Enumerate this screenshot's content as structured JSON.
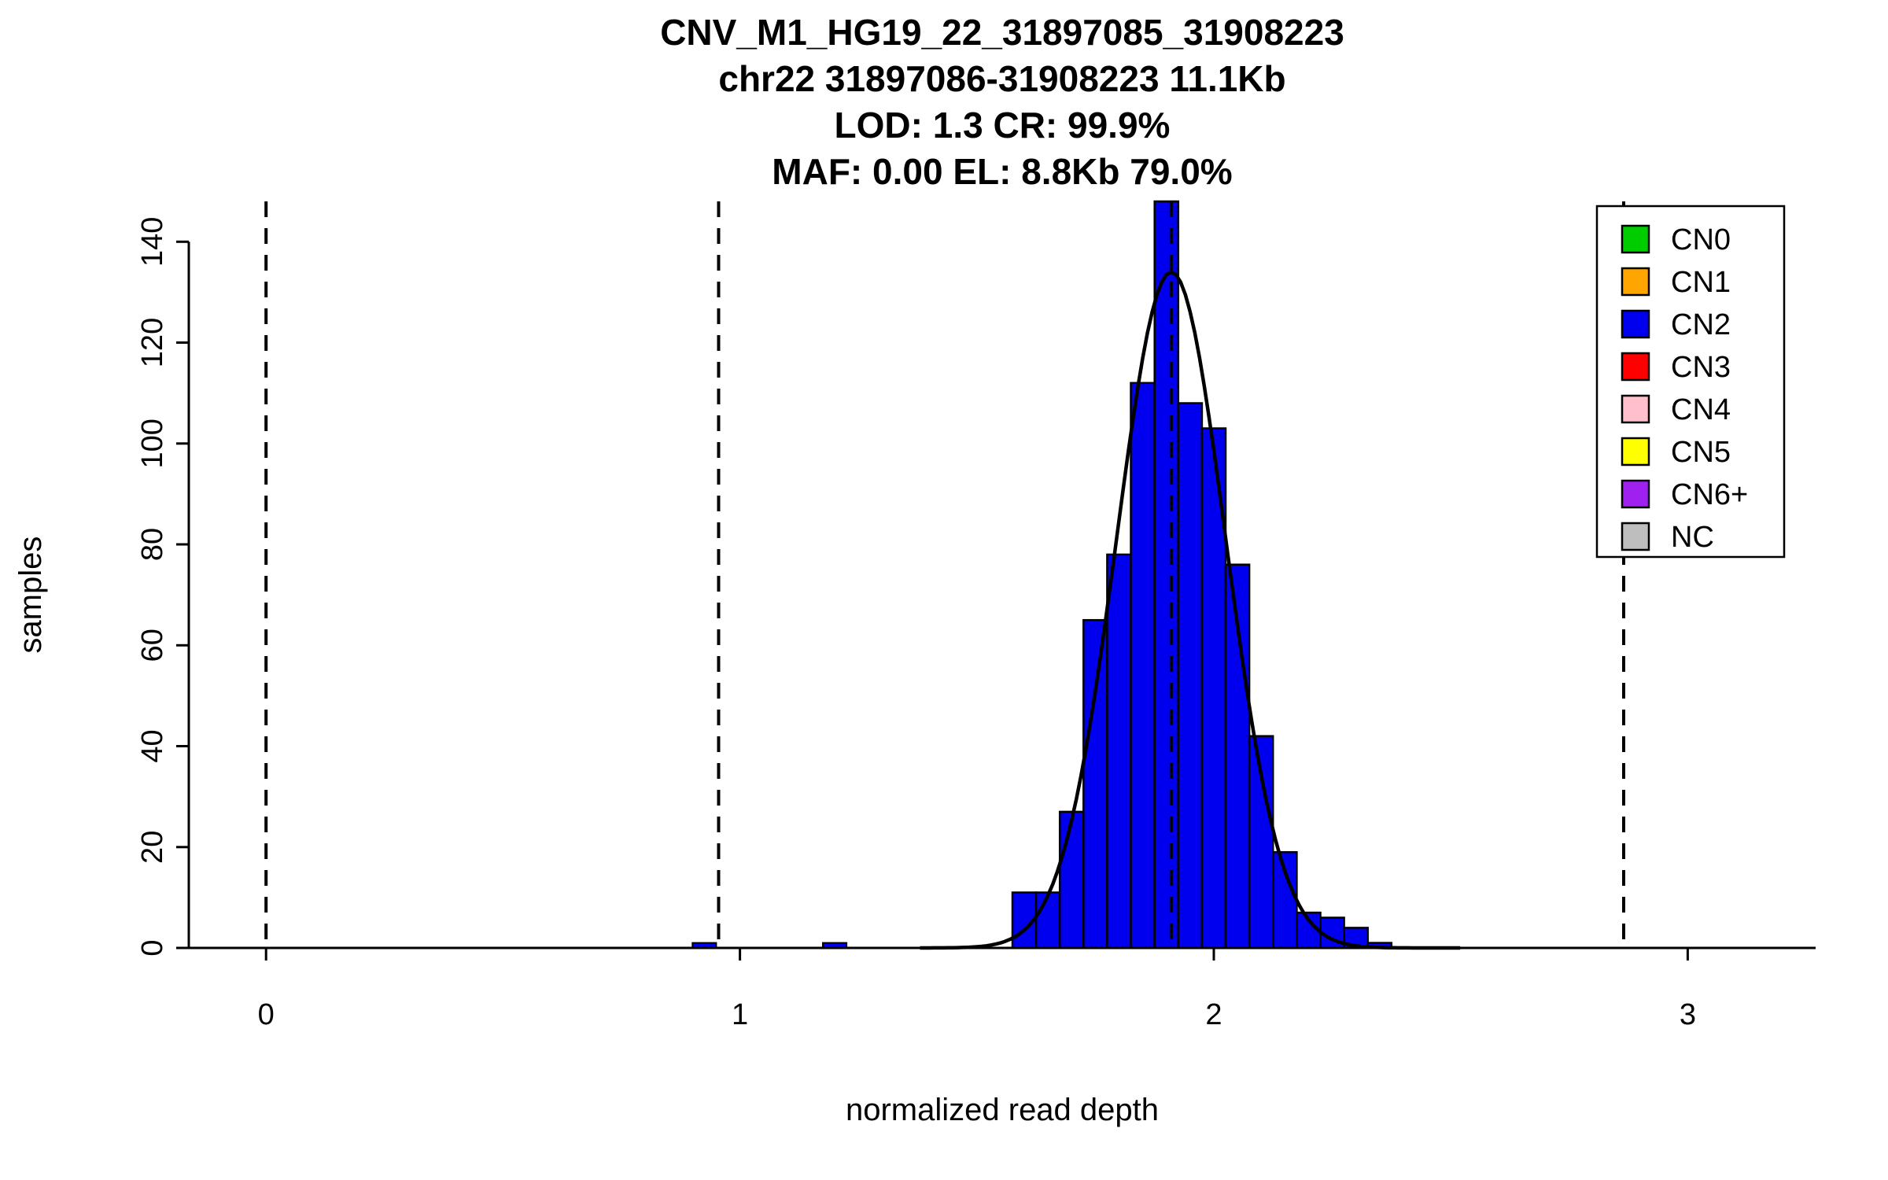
{
  "titles": {
    "line1": "CNV_M1_HG19_22_31897085_31908223",
    "line2": "chr22 31897086-31908223 11.1Kb",
    "line3": "LOD: 1.3 CR: 99.9%",
    "line4": "MAF: 0.00 EL: 8.8Kb 79.0%"
  },
  "chart_data": {
    "type": "bar",
    "subtype": "histogram",
    "title": "CNV_M1_HG19_22_31897085_31908223 / chr22 31897086-31908223 11.1Kb / LOD: 1.3 CR: 99.9% / MAF: 0.00 EL: 8.8Kb 79.0%",
    "xlabel": "normalized read depth",
    "ylabel": "samples",
    "xlim": [
      -0.163,
      3.27
    ],
    "ylim": [
      0,
      148
    ],
    "x_ticks": [
      0,
      1,
      2,
      3
    ],
    "y_ticks": [
      0,
      20,
      40,
      60,
      80,
      100,
      120,
      140
    ],
    "grid": false,
    "histogram": {
      "fill_color": "#0000EE",
      "bin_start": 1.575,
      "bin_width": 0.05,
      "counts": [
        11,
        11,
        27,
        65,
        78,
        112,
        148,
        108,
        103,
        76,
        42,
        19,
        7,
        6,
        4,
        1
      ]
    },
    "extra_bins": [
      {
        "x": 0.9,
        "width": 0.05,
        "count": 1
      },
      {
        "x": 1.175,
        "width": 0.05,
        "count": 1
      }
    ],
    "fit_curve": {
      "type": "gaussian",
      "mean": 1.91,
      "sd": 0.115,
      "amplitude": 134,
      "color": "#000000"
    },
    "vlines": {
      "positions": [
        0,
        0.955,
        1.91,
        2.865
      ],
      "style": "dashed",
      "color": "#000000"
    },
    "legend": {
      "position": "top-right",
      "entries": [
        {
          "label": "CN0",
          "color": "#00CD00"
        },
        {
          "label": "CN1",
          "color": "#FFA500"
        },
        {
          "label": "CN2",
          "color": "#0000EE"
        },
        {
          "label": "CN3",
          "color": "#FF0000"
        },
        {
          "label": "CN4",
          "color": "#FFC0CB"
        },
        {
          "label": "CN5",
          "color": "#FFFF00"
        },
        {
          "label": "CN6+",
          "color": "#A020F0"
        },
        {
          "label": "NC",
          "color": "#BEBEBE"
        }
      ]
    }
  }
}
